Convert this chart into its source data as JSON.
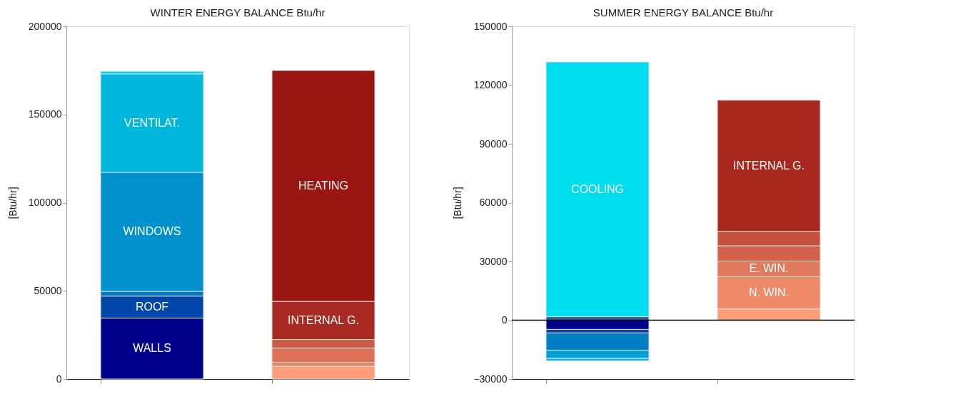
{
  "chart_data": [
    {
      "type": "bar",
      "title": "WINTER ENERGY BALANCE Btu/hr",
      "ylabel": "[Btu/hr]",
      "categories": [
        null,
        null
      ],
      "stacked": true,
      "ylim": [
        0,
        200000
      ],
      "yticks": [
        0,
        50000,
        100000,
        150000,
        200000
      ],
      "grid": false,
      "legend": false,
      "tick_labels": "y",
      "series": [
        {
          "name": "WALLS",
          "color": "#00008b",
          "values": [
            34500,
            null
          ]
        },
        {
          "name": "ROOF",
          "color": "#0047ab",
          "values": [
            12500,
            null
          ]
        },
        {
          "color": "#0077c0",
          "values": [
            2700,
            null
          ]
        },
        {
          "name": "WINDOWS",
          "color": "#0192cd",
          "values": [
            67500,
            null
          ]
        },
        {
          "name": "VENTILAT.",
          "color": "#00b6dd",
          "values": [
            55800,
            null
          ]
        },
        {
          "color": "#00d8ef",
          "values": [
            1500,
            null
          ]
        },
        {
          "color": "#fe9e78",
          "values": [
            null,
            7200
          ]
        },
        {
          "color": "#ea8564",
          "values": [
            null,
            2300
          ]
        },
        {
          "color": "#de7058",
          "values": [
            null,
            8000
          ]
        },
        {
          "color": "#cc5a46",
          "values": [
            null,
            4900
          ]
        },
        {
          "name": "INTERNAL G.",
          "color": "#a82a22",
          "values": [
            null,
            21600
          ]
        },
        {
          "name": "HEATING",
          "color": "#9a1612",
          "values": [
            null,
            131000
          ]
        }
      ]
    },
    {
      "type": "bar",
      "title": "SUMMER ENERGY BALANCE Btu/hr",
      "ylabel": "[Btu/hr]",
      "categories": [
        null,
        null
      ],
      "stacked": true,
      "ylim": [
        -30000,
        150000
      ],
      "yticks": [
        -30000,
        0,
        30000,
        60000,
        90000,
        120000,
        150000
      ],
      "grid": false,
      "legend": false,
      "tick_labels": "y",
      "ref_lines": [
        {
          "axis": "y",
          "value": 0,
          "color": "#000000"
        }
      ],
      "series": [
        {
          "color": "#2a5fa8",
          "values": [
            1800,
            null
          ]
        },
        {
          "name": "COOLING",
          "color": "#00ddee",
          "values": [
            130000,
            null
          ]
        },
        {
          "color": "#00008b",
          "values": [
            -4700,
            null
          ]
        },
        {
          "color": "#0a3fa8",
          "values": [
            -1800,
            null
          ]
        },
        {
          "color": "#007fc4",
          "values": [
            -8900,
            null
          ]
        },
        {
          "color": "#00a0d4",
          "values": [
            -4100,
            null
          ]
        },
        {
          "color": "#00bde6",
          "values": [
            -1300,
            null
          ]
        },
        {
          "color": "#fe9e78",
          "values": [
            null,
            5700
          ]
        },
        {
          "name": "N. WIN.",
          "color": "#ee8a69",
          "values": [
            null,
            16500
          ]
        },
        {
          "name": "E. WIN.",
          "color": "#e07a5c",
          "values": [
            null,
            8000
          ]
        },
        {
          "color": "#d2624a",
          "values": [
            null,
            7800
          ]
        },
        {
          "color": "#c4503e",
          "values": [
            null,
            7300
          ]
        },
        {
          "name": "INTERNAL G.",
          "color": "#a8271e",
          "values": [
            null,
            67000
          ]
        }
      ]
    }
  ]
}
